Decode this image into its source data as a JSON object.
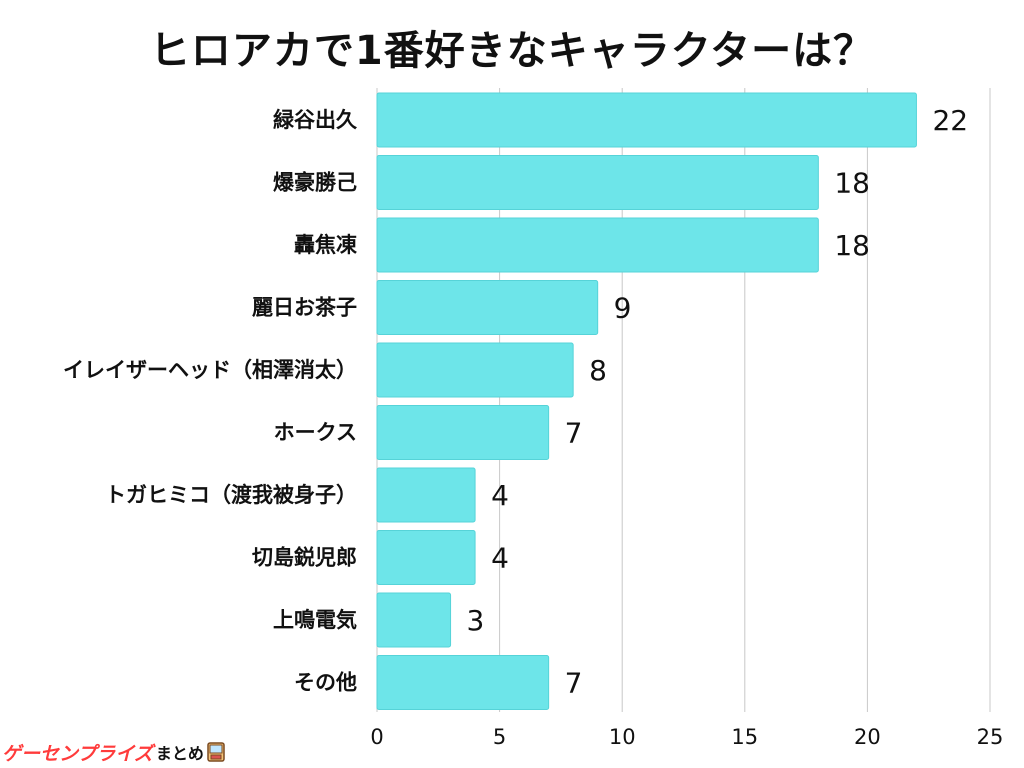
{
  "chart_data": {
    "type": "bar",
    "orientation": "horizontal",
    "title": "ヒロアカで1番好きなキャラクターは？",
    "categories": [
      "緑谷出久",
      "爆豪勝己",
      "轟焦凍",
      "麗日お茶子",
      "イレイザーヘッド（相澤消太）",
      "ホークス",
      "トガヒミコ（渡我被身子）",
      "切島鋭児郎",
      "上鳴電気",
      "その他"
    ],
    "values": [
      22,
      18,
      18,
      9,
      8,
      7,
      4,
      4,
      3,
      7
    ],
    "xlim": [
      0,
      25
    ],
    "x_ticks": [
      0,
      5,
      10,
      15,
      20,
      25
    ],
    "grid": true,
    "xlabel": "",
    "ylabel": "",
    "bar_color": "#6de5e9",
    "bar_stroke": "#56d3d8",
    "grid_color": "#c8c8c8"
  },
  "watermark": {
    "main": "ゲーセンプライズ",
    "sub": "まとめ"
  }
}
